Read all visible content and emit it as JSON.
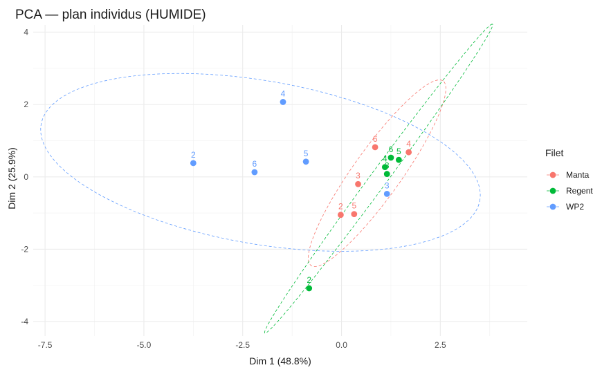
{
  "chart_data": {
    "type": "scatter",
    "title": "PCA — plan individus (HUMIDE)",
    "xlabel": "Dim 1 (48.8%)",
    "ylabel": "Dim 2 (25.9%)",
    "xlim": [
      -7.8,
      4.7
    ],
    "ylim": [
      -4.4,
      4.2
    ],
    "x_ticks": [
      -7.5,
      -5.0,
      -2.5,
      0.0,
      2.5
    ],
    "x_tick_labels": [
      "-7.5",
      "-5.0",
      "-2.5",
      "0.0",
      "2.5"
    ],
    "y_ticks": [
      -4,
      -2,
      0,
      2,
      4
    ],
    "y_tick_labels": [
      "-4",
      "-2",
      "0",
      "2",
      "4"
    ],
    "grid": true,
    "legend_title": "Filet",
    "legend_position": "right",
    "series": [
      {
        "name": "Manta",
        "color": "#F8766D",
        "points": [
          {
            "label": "2",
            "x": -0.02,
            "y": -1.05
          },
          {
            "label": "3",
            "x": 0.42,
            "y": -0.2
          },
          {
            "label": "4",
            "x": 1.7,
            "y": 0.68
          },
          {
            "label": "5",
            "x": 0.32,
            "y": -1.03
          },
          {
            "label": "6",
            "x": 0.85,
            "y": 0.82
          }
        ],
        "ellipse": {
          "center": [
            0.9,
            0.1
          ],
          "semi_major": 3.05,
          "semi_minor": 0.62,
          "angle_deg": 57
        }
      },
      {
        "name": "Regent",
        "color": "#00BA38",
        "points": [
          {
            "label": "2",
            "x": -0.82,
            "y": -3.08
          },
          {
            "label": "3",
            "x": 1.15,
            "y": 0.08
          },
          {
            "label": "4",
            "x": 1.1,
            "y": 0.27
          },
          {
            "label": "5",
            "x": 1.45,
            "y": 0.47
          },
          {
            "label": "6",
            "x": 1.25,
            "y": 0.53
          }
        ],
        "ellipse": {
          "center": [
            0.94,
            -0.05
          ],
          "semi_major": 5.15,
          "semi_minor": 0.22,
          "angle_deg": 56
        }
      },
      {
        "name": "WP2",
        "color": "#619CFF",
        "points": [
          {
            "label": "2",
            "x": -3.75,
            "y": 0.38
          },
          {
            "label": "3",
            "x": 1.15,
            "y": -0.47
          },
          {
            "label": "4",
            "x": -1.48,
            "y": 2.07
          },
          {
            "label": "5",
            "x": -0.9,
            "y": 0.42
          },
          {
            "label": "6",
            "x": -2.2,
            "y": 0.13
          }
        ],
        "ellipse": {
          "center": [
            -2.05,
            0.4
          ],
          "semi_major": 5.65,
          "semi_minor": 2.25,
          "angle_deg": -11
        }
      }
    ]
  }
}
